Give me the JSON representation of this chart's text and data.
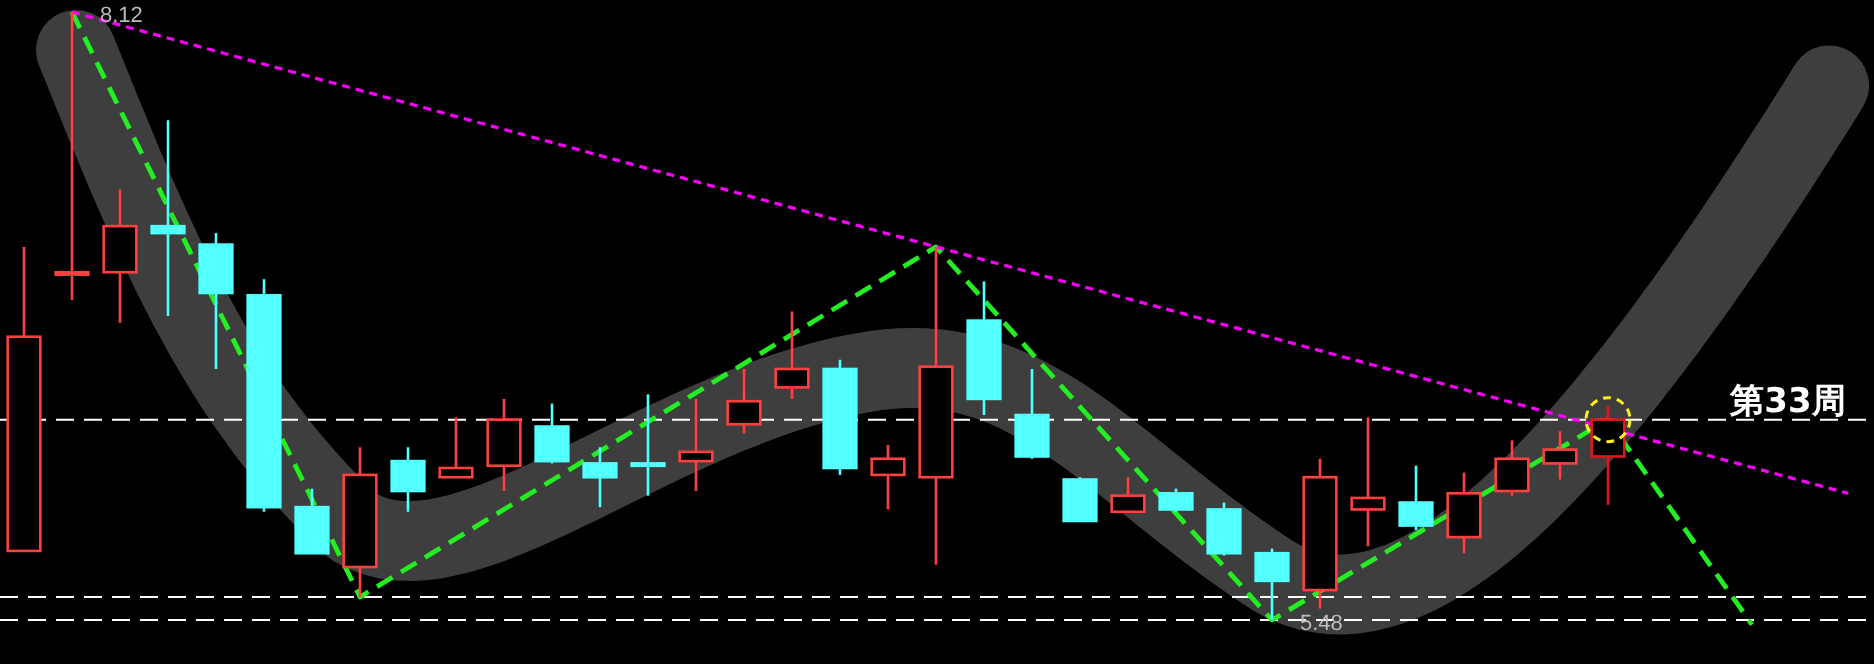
{
  "chart_data": {
    "type": "candlestick",
    "categories": [
      null,
      null,
      null,
      null,
      null,
      null,
      null,
      null,
      null,
      null,
      null,
      null,
      null,
      null,
      null,
      null,
      null,
      null,
      null,
      null,
      null,
      null,
      null,
      null,
      null,
      null,
      null,
      null,
      null,
      null,
      null,
      null,
      null,
      null,
      null,
      null,
      null,
      null,
      null
    ],
    "ohlc": [
      [
        5.78,
        7.1,
        5.78,
        6.71
      ],
      [
        6.99,
        8.12,
        6.87,
        6.99
      ],
      [
        6.99,
        7.35,
        6.77,
        7.19
      ],
      [
        7.19,
        7.65,
        6.8,
        7.16
      ],
      [
        7.11,
        7.16,
        6.57,
        6.9
      ],
      [
        6.89,
        6.96,
        5.95,
        5.97
      ],
      [
        5.97,
        6.05,
        5.77,
        5.77
      ],
      [
        5.71,
        6.23,
        5.58,
        6.11
      ],
      [
        6.17,
        6.23,
        5.95,
        6.04
      ],
      [
        6.1,
        6.36,
        6.1,
        6.14
      ],
      [
        6.15,
        6.44,
        6.04,
        6.35
      ],
      [
        6.32,
        6.42,
        6.16,
        6.17
      ],
      [
        6.16,
        6.23,
        5.97,
        6.1
      ],
      [
        6.16,
        6.46,
        6.02,
        6.16
      ],
      [
        6.17,
        6.44,
        6.04,
        6.21
      ],
      [
        6.33,
        6.57,
        6.29,
        6.43
      ],
      [
        6.49,
        6.82,
        6.44,
        6.57
      ],
      [
        6.57,
        6.61,
        6.11,
        6.14
      ],
      [
        6.11,
        6.24,
        5.96,
        6.18
      ],
      [
        6.1,
        7.1,
        5.72,
        6.58
      ],
      [
        6.78,
        6.95,
        6.37,
        6.44
      ],
      [
        6.37,
        6.57,
        6.18,
        6.19
      ],
      [
        6.09,
        6.1,
        5.91,
        5.91
      ],
      [
        5.95,
        6.1,
        5.95,
        6.02
      ],
      [
        6.03,
        6.05,
        5.95,
        5.96
      ],
      [
        5.96,
        5.99,
        5.76,
        5.77
      ],
      [
        5.77,
        5.79,
        5.48,
        5.65
      ],
      [
        5.61,
        6.18,
        5.53,
        6.1
      ],
      [
        5.96,
        6.36,
        5.8,
        6.01
      ],
      [
        5.99,
        6.15,
        5.87,
        5.89
      ],
      [
        5.84,
        6.12,
        5.77,
        6.03
      ],
      [
        6.04,
        6.26,
        6.02,
        6.18
      ],
      [
        6.16,
        6.3,
        6.09,
        6.22
      ],
      [
        6.19,
        6.41,
        5.98,
        6.35
      ],
      null,
      null,
      null,
      null,
      null
    ],
    "colors": [
      "#ff4040",
      "#ff4040",
      "#ff4040",
      "#54ffff",
      "#54ffff",
      "#54ffff",
      "#54ffff",
      "#ff4040",
      "#54ffff",
      "#ff4040",
      "#ff4040",
      "#54ffff",
      "#54ffff",
      "#54ffff",
      "#ff4040",
      "#ff4040",
      "#ff4040",
      "#54ffff",
      "#ff4040",
      "#ff4040",
      "#54ffff",
      "#54ffff",
      "#54ffff",
      "#ff4040",
      "#54ffff",
      "#54ffff",
      "#54ffff",
      "#ff4040",
      "#ff4040",
      "#54ffff",
      "#ff4040",
      "#ff4040",
      "#ff4040",
      "#e01818",
      null,
      null,
      null,
      null,
      null
    ],
    "series": [
      {
        "type": "line",
        "color": "#22ee22",
        "line_style": "dashed",
        "values": [
          null,
          8.12,
          null,
          null,
          null,
          null,
          null,
          5.58,
          null,
          null,
          null,
          null,
          null,
          null,
          null,
          null,
          null,
          null,
          null,
          7.1,
          null,
          null,
          null,
          null,
          null,
          null,
          5.48,
          null,
          null,
          null,
          null,
          null,
          null,
          6.35,
          null,
          null,
          5.46,
          null,
          null
        ]
      },
      {
        "type": "line",
        "color": "#ff00ff",
        "line_style": "dotted",
        "values": [
          null,
          8.12,
          null,
          null,
          null,
          null,
          null,
          null,
          null,
          null,
          null,
          null,
          null,
          null,
          null,
          null,
          null,
          null,
          null,
          7.1,
          null,
          null,
          null,
          null,
          null,
          null,
          null,
          null,
          null,
          null,
          null,
          null,
          null,
          null,
          null,
          null,
          null,
          null,
          6.03
        ]
      }
    ],
    "ref_lines": [
      {
        "axis": "y",
        "value": 5.58,
        "color": "#ffffff",
        "line_style": "dashed"
      },
      {
        "axis": "y",
        "value": 5.48,
        "color": "#ffffff",
        "line_style": "dashed"
      },
      {
        "axis": "y",
        "value": 6.35,
        "label": "第33周",
        "color": "#ffffff",
        "line_style": "dashed"
      }
    ],
    "annotations": [
      "8.12",
      "5.48"
    ]
  }
}
